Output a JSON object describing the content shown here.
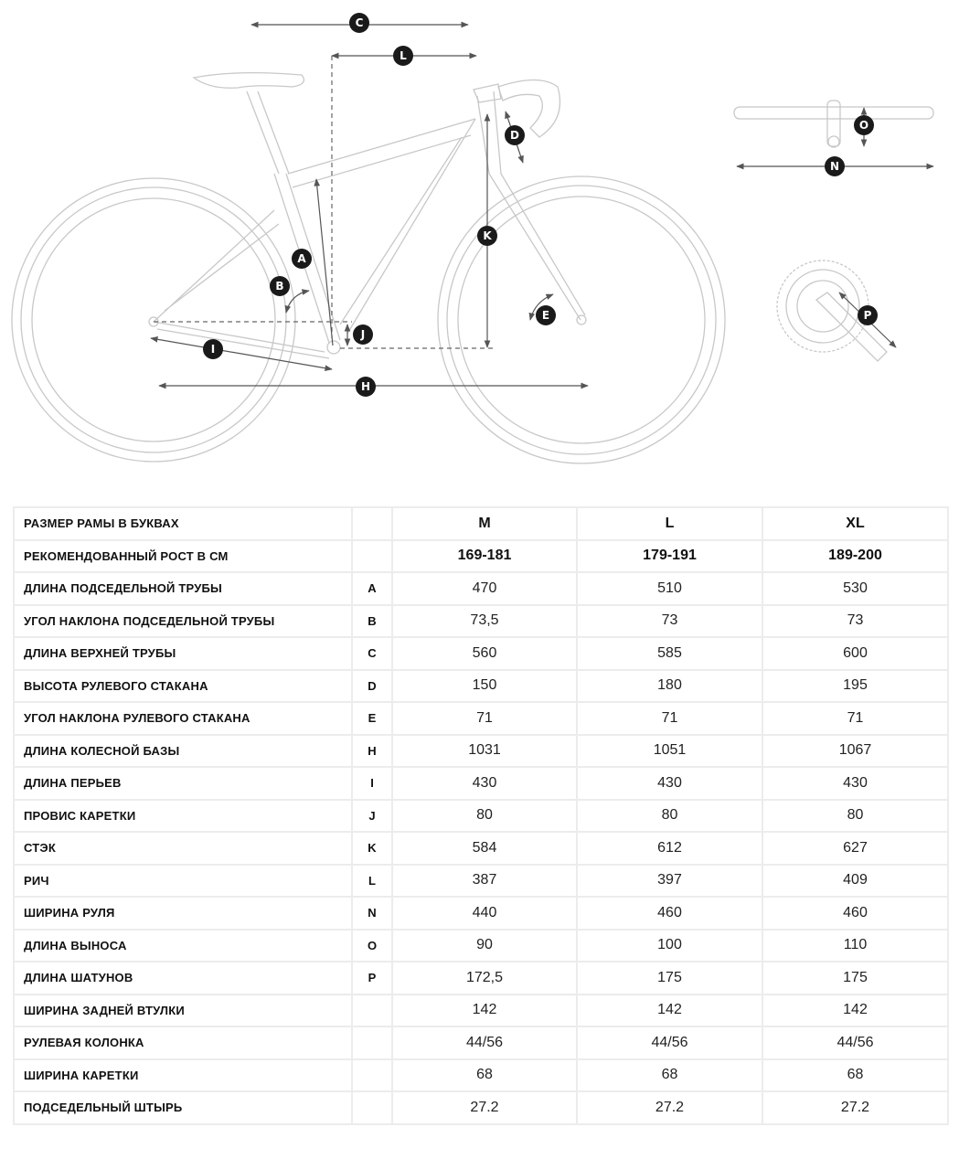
{
  "diagram": {
    "markers": {
      "A": "A",
      "B": "B",
      "C": "C",
      "D": "D",
      "E": "E",
      "H": "H",
      "I": "I",
      "J": "J",
      "K": "K",
      "L": "L",
      "N": "N",
      "O": "O",
      "P": "P"
    }
  },
  "table": {
    "sizes": [
      "M",
      "L",
      "XL"
    ],
    "rows": [
      {
        "label": "РАЗМЕР РАМЫ В БУКВАХ",
        "code": "",
        "values": [
          "M",
          "L",
          "XL"
        ],
        "header": true
      },
      {
        "label": "РЕКОМЕНДОВАННЫЙ РОСТ В СМ",
        "code": "",
        "values": [
          "169-181",
          "179-191",
          "189-200"
        ],
        "header": true
      },
      {
        "label": "ДЛИНА ПОДСЕДЕЛЬНОЙ ТРУБЫ",
        "code": "A",
        "values": [
          "470",
          "510",
          "530"
        ]
      },
      {
        "label": "УГОЛ НАКЛОНА ПОДСЕДЕЛЬНОЙ ТРУБЫ",
        "code": "B",
        "values": [
          "73,5",
          "73",
          "73"
        ]
      },
      {
        "label": "ДЛИНА ВЕРХНЕЙ ТРУБЫ",
        "code": "C",
        "values": [
          "560",
          "585",
          "600"
        ]
      },
      {
        "label": "ВЫСОТА РУЛЕВОГО СТАКАНА",
        "code": "D",
        "values": [
          "150",
          "180",
          "195"
        ]
      },
      {
        "label": "УГОЛ НАКЛОНА РУЛЕВОГО СТАКАНА",
        "code": "E",
        "values": [
          "71",
          "71",
          "71"
        ]
      },
      {
        "label": "ДЛИНА КОЛЕСНОЙ БАЗЫ",
        "code": "H",
        "values": [
          "1031",
          "1051",
          "1067"
        ]
      },
      {
        "label": "ДЛИНА ПЕРЬЕВ",
        "code": "I",
        "values": [
          "430",
          "430",
          "430"
        ]
      },
      {
        "label": "ПРОВИС КАРЕТКИ",
        "code": "J",
        "values": [
          "80",
          "80",
          "80"
        ]
      },
      {
        "label": "СТЭК",
        "code": "K",
        "values": [
          "584",
          "612",
          "627"
        ]
      },
      {
        "label": "РИЧ",
        "code": "L",
        "values": [
          "387",
          "397",
          "409"
        ]
      },
      {
        "label": "ШИРИНА РУЛЯ",
        "code": "N",
        "values": [
          "440",
          "460",
          "460"
        ]
      },
      {
        "label": "ДЛИНА ВЫНОСА",
        "code": "O",
        "values": [
          "90",
          "100",
          "110"
        ]
      },
      {
        "label": "ДЛИНА ШАТУНОВ",
        "code": "P",
        "values": [
          "172,5",
          "175",
          "175"
        ]
      },
      {
        "label": "ШИРИНА ЗАДНЕЙ ВТУЛКИ",
        "code": "",
        "values": [
          "142",
          "142",
          "142"
        ]
      },
      {
        "label": "РУЛЕВАЯ КОЛОНКА",
        "code": "",
        "values": [
          "44/56",
          "44/56",
          "44/56"
        ]
      },
      {
        "label": "ШИРИНА КАРЕТКИ",
        "code": "",
        "values": [
          "68",
          "68",
          "68"
        ]
      },
      {
        "label": "ПОДСЕДЕЛЬНЫЙ ШТЫРЬ",
        "code": "",
        "values": [
          "27.2",
          "27.2",
          "27.2"
        ]
      }
    ]
  }
}
